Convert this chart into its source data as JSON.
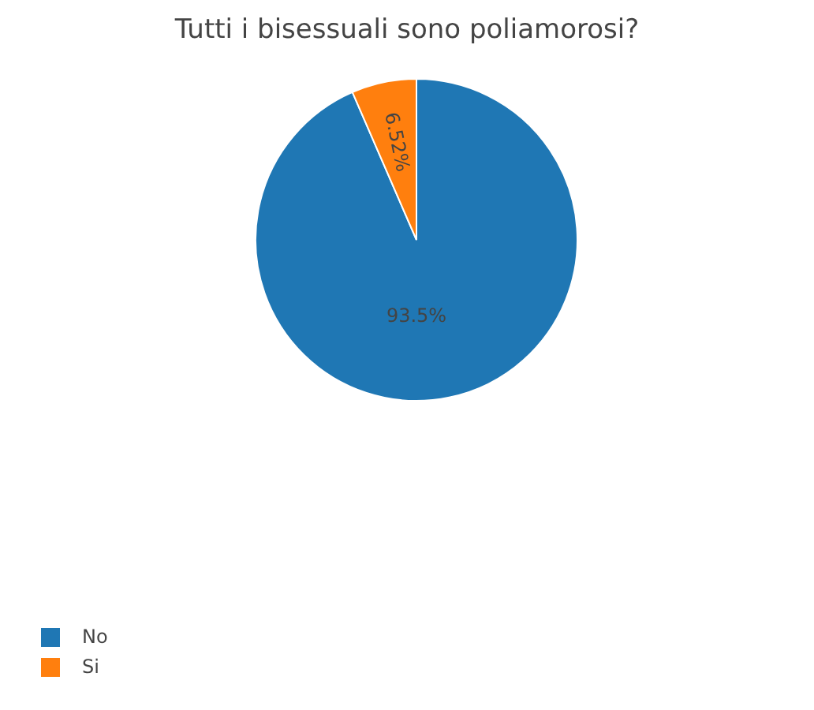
{
  "chart_data": {
    "type": "pie",
    "title": "Tutti i bisessuali sono poliamorosi?",
    "categories": [
      "No",
      "Si"
    ],
    "values": [
      93.5,
      6.52
    ],
    "colors": [
      "#1f77b4",
      "#ff7f0e"
    ],
    "value_labels": [
      "93.5%",
      "6.52%"
    ],
    "legend": "bottom left"
  }
}
